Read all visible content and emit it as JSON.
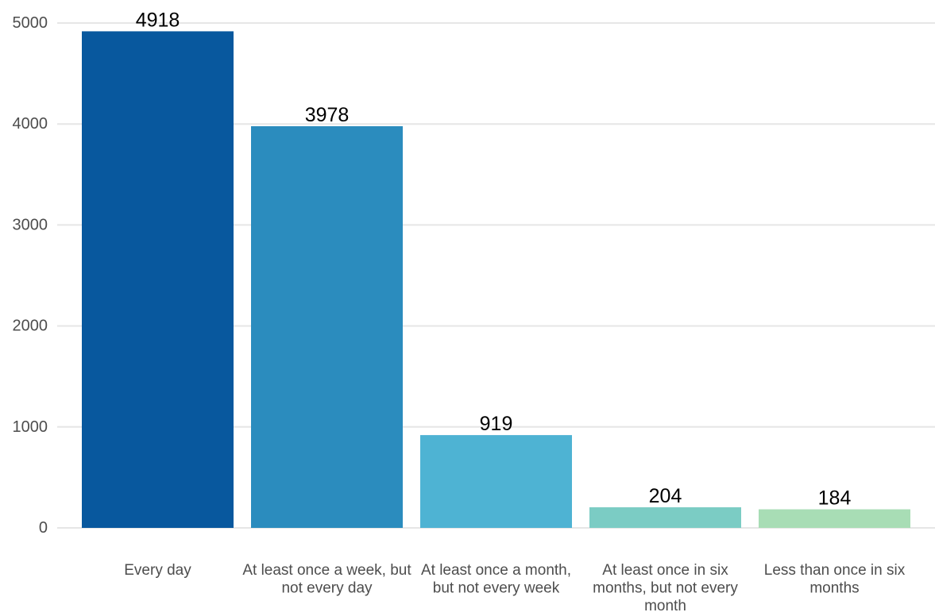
{
  "chart_data": {
    "type": "bar",
    "title": "",
    "xlabel": "",
    "ylabel": "",
    "categories": [
      "Every day",
      "At least once a week, but not every day",
      "At least once a month, but not every week",
      "At least once in six months, but not every month",
      "Less than once in six months"
    ],
    "category_label_lines": [
      [
        "Every day"
      ],
      [
        "At least once a week, but",
        "not every day"
      ],
      [
        "At least once a month,",
        "but not every week"
      ],
      [
        "At least once in six",
        "months, but not every",
        "month"
      ],
      [
        "Less than once in six",
        "months"
      ]
    ],
    "values": [
      4918,
      3978,
      919,
      204,
      184
    ],
    "data_labels": [
      "4918",
      "3978",
      "919",
      "204",
      "184"
    ],
    "bar_colors": [
      "#08589e",
      "#2b8cbe",
      "#4eb3d3",
      "#7bccc4",
      "#a8ddb5"
    ],
    "ylim": [
      0,
      5000
    ],
    "yticks": [
      0,
      1000,
      2000,
      3000,
      4000,
      5000
    ],
    "ytick_labels": [
      "0",
      "1000",
      "2000",
      "3000",
      "4000",
      "5000"
    ],
    "grid": true,
    "legend": "none"
  }
}
